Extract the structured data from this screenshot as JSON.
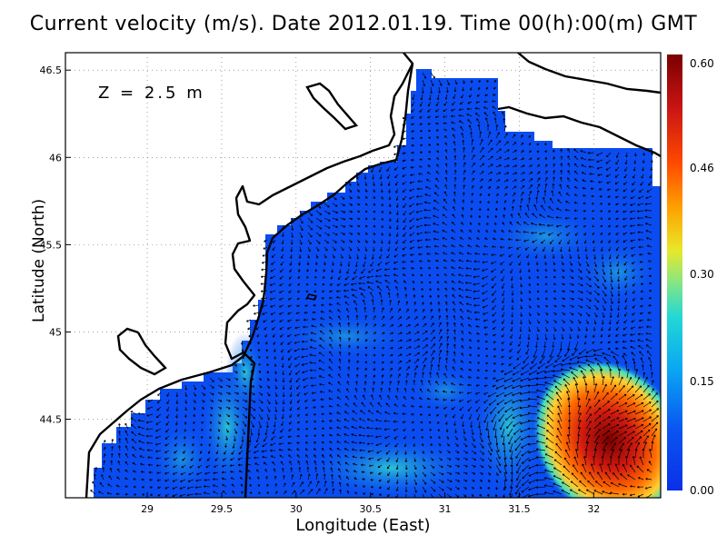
{
  "title": "Current velocity (m/s). Date 2012.01.19. Time 00(h):00(m) GMT",
  "map": {
    "depth_label": "Z = 2.5 m",
    "xlabel": "Longitude (East)",
    "ylabel": "Latitude (North)",
    "x_ticks": [
      "29",
      "29.5",
      "30",
      "30.5",
      "31",
      "31.5",
      "32"
    ],
    "y_ticks": [
      "46.5",
      "46",
      "45.5",
      "45",
      "44.5"
    ],
    "x_range": [
      28.45,
      32.45
    ],
    "y_range": [
      44.05,
      46.6
    ],
    "background": "#ffffff",
    "water_color": "#0a4cf0",
    "arrow_color": "#000000",
    "coast_color": "#000000"
  },
  "colorbar": {
    "labels": [
      "0.60",
      "0.46",
      "0.30",
      "0.15",
      "0.00"
    ],
    "colors": [
      "#7a0000",
      "#c81414",
      "#ff4a00",
      "#ffa000",
      "#e8e82a",
      "#8ae680",
      "#24d8d4",
      "#0aa8f2",
      "#0a55f0",
      "#0a30e8"
    ]
  }
}
